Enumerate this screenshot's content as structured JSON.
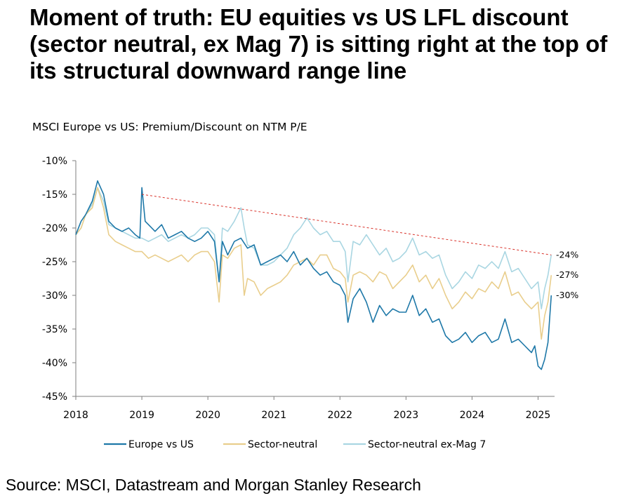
{
  "headline": "Moment of truth: EU equities vs US LFL discount (sector neutral, ex Mag 7) is sitting right at the top of its structural downward range line",
  "source": "Source: MSCI, Datastream and Morgan Stanley Research",
  "chart_data": {
    "type": "line",
    "title": "MSCI Europe vs US: Premium/Discount on NTM P/E",
    "xlabel": "",
    "ylabel": "",
    "xlim": [
      2018.0,
      2025.25
    ],
    "ylim": [
      -45,
      -10
    ],
    "x_ticks": [
      "2018",
      "2019",
      "2020",
      "2021",
      "2022",
      "2023",
      "2024",
      "2025"
    ],
    "y_ticks": [
      "-10%",
      "-15%",
      "-20%",
      "-25%",
      "-30%",
      "-35%",
      "-40%",
      "-45%"
    ],
    "y_tick_values": [
      -10,
      -15,
      -20,
      -25,
      -30,
      -35,
      -40,
      -45
    ],
    "grid": false,
    "legend_position": "bottom",
    "series": [
      {
        "name": "Europe vs US",
        "color": "#1E78A8",
        "x": [
          2018.0,
          2018.08,
          2018.15,
          2018.25,
          2018.33,
          2018.42,
          2018.5,
          2018.6,
          2018.7,
          2018.8,
          2018.9,
          2018.97,
          2019.0,
          2019.05,
          2019.1,
          2019.2,
          2019.3,
          2019.4,
          2019.5,
          2019.6,
          2019.7,
          2019.8,
          2019.9,
          2020.0,
          2020.1,
          2020.17,
          2020.22,
          2020.3,
          2020.4,
          2020.5,
          2020.6,
          2020.7,
          2020.8,
          2020.9,
          2021.0,
          2021.1,
          2021.2,
          2021.3,
          2021.4,
          2021.5,
          2021.6,
          2021.7,
          2021.8,
          2021.9,
          2022.0,
          2022.08,
          2022.12,
          2022.2,
          2022.3,
          2022.4,
          2022.5,
          2022.6,
          2022.7,
          2022.8,
          2022.9,
          2023.0,
          2023.1,
          2023.2,
          2023.3,
          2023.4,
          2023.5,
          2023.6,
          2023.7,
          2023.8,
          2023.9,
          2024.0,
          2024.1,
          2024.2,
          2024.3,
          2024.4,
          2024.5,
          2024.6,
          2024.7,
          2024.8,
          2024.85,
          2024.9,
          2024.95,
          2025.0,
          2025.05,
          2025.1,
          2025.15,
          2025.2
        ],
        "values": [
          -21,
          -19,
          -18,
          -16,
          -13,
          -15,
          -19,
          -20,
          -20.5,
          -20,
          -21,
          -21.5,
          -14,
          -19,
          -19.5,
          -20.5,
          -19.5,
          -21.5,
          -21,
          -20.5,
          -21.5,
          -22,
          -21.5,
          -20.5,
          -22,
          -28,
          -22,
          -24,
          -22,
          -21.5,
          -23,
          -22.5,
          -25.5,
          -25,
          -24.5,
          -24,
          -25,
          -23.5,
          -25.5,
          -24.5,
          -26,
          -27,
          -26.5,
          -28,
          -28.5,
          -30,
          -34,
          -30.5,
          -29,
          -31,
          -34,
          -31.5,
          -33,
          -32,
          -32.5,
          -32.5,
          -30,
          -33,
          -32,
          -34,
          -33.5,
          -36,
          -37,
          -36.5,
          -35.5,
          -37,
          -36,
          -35.5,
          -37,
          -36.5,
          -33.5,
          -37,
          -36.5,
          -37.5,
          -38,
          -38.5,
          -37.5,
          -40.5,
          -41,
          -39.5,
          -37,
          -30
        ]
      },
      {
        "name": "Sector-neutral",
        "color": "#E9CE8C",
        "x": [
          2018.0,
          2018.08,
          2018.15,
          2018.25,
          2018.33,
          2018.42,
          2018.5,
          2018.6,
          2018.7,
          2018.8,
          2018.9,
          2019.0,
          2019.1,
          2019.2,
          2019.3,
          2019.4,
          2019.5,
          2019.6,
          2019.7,
          2019.8,
          2019.9,
          2020.0,
          2020.1,
          2020.17,
          2020.22,
          2020.3,
          2020.4,
          2020.5,
          2020.55,
          2020.6,
          2020.7,
          2020.8,
          2020.9,
          2021.0,
          2021.1,
          2021.2,
          2021.3,
          2021.4,
          2021.5,
          2021.6,
          2021.7,
          2021.8,
          2021.9,
          2022.0,
          2022.08,
          2022.12,
          2022.2,
          2022.3,
          2022.4,
          2022.5,
          2022.6,
          2022.7,
          2022.8,
          2022.9,
          2023.0,
          2023.1,
          2023.2,
          2023.3,
          2023.4,
          2023.5,
          2023.6,
          2023.7,
          2023.8,
          2023.9,
          2024.0,
          2024.1,
          2024.2,
          2024.3,
          2024.4,
          2024.5,
          2024.6,
          2024.7,
          2024.8,
          2024.9,
          2025.0,
          2025.05,
          2025.1,
          2025.15,
          2025.2
        ],
        "values": [
          -21,
          -20,
          -18,
          -17,
          -14,
          -17,
          -21,
          -22,
          -22.5,
          -23,
          -23.5,
          -23.5,
          -24.5,
          -24,
          -24.5,
          -25,
          -24.5,
          -24,
          -25,
          -24,
          -23.5,
          -23.5,
          -25,
          -31,
          -24,
          -24.5,
          -23,
          -22.5,
          -30,
          -27.5,
          -28,
          -30,
          -29,
          -28.5,
          -28,
          -27,
          -25.5,
          -25,
          -24.5,
          -25.5,
          -24,
          -24,
          -26,
          -26.5,
          -27.5,
          -31,
          -27,
          -26.5,
          -27,
          -28,
          -26.5,
          -27,
          -29,
          -28,
          -27,
          -25.5,
          -28,
          -27,
          -29,
          -27.5,
          -30,
          -32,
          -31,
          -29.5,
          -30.5,
          -29,
          -29.5,
          -28,
          -29,
          -26.5,
          -30,
          -29.5,
          -31,
          -32,
          -31,
          -36.5,
          -33,
          -31,
          -27
        ]
      },
      {
        "name": "Sector-neutral ex-Mag 7",
        "color": "#A9D6E2",
        "x": [
          2018.0,
          2018.08,
          2018.15,
          2018.25,
          2018.33,
          2018.42,
          2018.5,
          2018.6,
          2018.7,
          2018.8,
          2018.9,
          2019.0,
          2019.1,
          2019.2,
          2019.3,
          2019.4,
          2019.5,
          2019.6,
          2019.7,
          2019.8,
          2019.9,
          2020.0,
          2020.1,
          2020.17,
          2020.22,
          2020.3,
          2020.4,
          2020.5,
          2020.55,
          2020.6,
          2020.7,
          2020.8,
          2020.9,
          2021.0,
          2021.1,
          2021.2,
          2021.3,
          2021.4,
          2021.5,
          2021.6,
          2021.7,
          2021.8,
          2021.9,
          2022.0,
          2022.08,
          2022.12,
          2022.2,
          2022.3,
          2022.4,
          2022.5,
          2022.6,
          2022.7,
          2022.8,
          2022.9,
          2023.0,
          2023.1,
          2023.2,
          2023.3,
          2023.4,
          2023.5,
          2023.6,
          2023.7,
          2023.8,
          2023.9,
          2024.0,
          2024.1,
          2024.2,
          2024.3,
          2024.4,
          2024.5,
          2024.6,
          2024.7,
          2024.8,
          2024.9,
          2025.0,
          2025.05,
          2025.1,
          2025.15,
          2025.2
        ],
        "values": [
          -21,
          -20,
          -18,
          -16.5,
          -14,
          -16,
          -19.5,
          -20,
          -20.5,
          -21,
          -21.5,
          -21.5,
          -22,
          -21.5,
          -21,
          -22,
          -21.5,
          -21,
          -21.5,
          -21,
          -20,
          -20,
          -21,
          -28,
          -20,
          -20.5,
          -19,
          -17,
          -20,
          -22.5,
          -23,
          -25.5,
          -25.5,
          -25,
          -24,
          -23,
          -21,
          -20,
          -18.5,
          -20,
          -21,
          -20.5,
          -22,
          -22,
          -23.5,
          -28,
          -22,
          -22.5,
          -21,
          -22.5,
          -24,
          -23,
          -25,
          -24.5,
          -23.5,
          -21.5,
          -24,
          -23.5,
          -24.5,
          -24,
          -27,
          -29,
          -28,
          -26.5,
          -27.5,
          -25.5,
          -26,
          -25,
          -26,
          -23.5,
          -26.5,
          -26,
          -27.5,
          -29,
          -28,
          -32,
          -29,
          -27,
          -24
        ]
      }
    ],
    "trendline": {
      "x": [
        2019.0,
        2025.2
      ],
      "values": [
        -15,
        -24
      ],
      "color": "#D9322A",
      "style": "dashed"
    },
    "annotations": [
      "-24%",
      "-27%",
      "-30%"
    ],
    "annotation_values": [
      -24,
      -27,
      -30
    ]
  }
}
